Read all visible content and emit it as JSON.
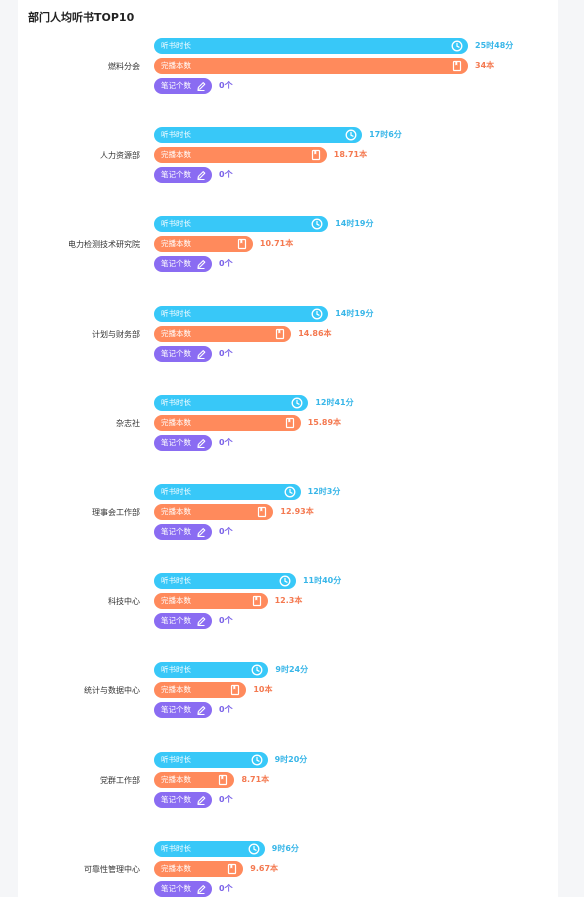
{
  "title": "部门人均听书TOP10",
  "colors": {
    "time": "#38c8f8",
    "books": "#ff8a5c",
    "notes": "#8a6cf2"
  },
  "bar_labels": {
    "time": "听书时长",
    "books": "完播本数",
    "notes": "笔记个数"
  },
  "icons": {
    "time": "clock-icon",
    "books": "book-icon",
    "notes": "pen-icon"
  },
  "chart_data": {
    "type": "bar",
    "title": "部门人均听书TOP10",
    "categories": [
      "燃料分会",
      "人力资源部",
      "电力检测技术研究院",
      "计划与财务部",
      "杂志社",
      "理事会工作部",
      "科技中心",
      "统计与数据中心",
      "党群工作部",
      "可靠性管理中心"
    ],
    "series": [
      {
        "name": "听书时长",
        "values_minutes": [
          1548,
          1026,
          859,
          859,
          761,
          723,
          700,
          564,
          560,
          546
        ]
      },
      {
        "name": "完播本数",
        "values": [
          34,
          18.71,
          10.71,
          14.86,
          15.89,
          12.93,
          12.3,
          10,
          8.71,
          9.67
        ]
      },
      {
        "name": "笔记个数",
        "values": [
          0,
          0,
          0,
          0,
          0,
          0,
          0,
          0,
          0,
          0
        ]
      }
    ]
  },
  "rows": [
    {
      "dept": "燃料分会",
      "time_text": "25时48分",
      "books_text": "34本",
      "notes_text": "0个"
    },
    {
      "dept": "人力资源部",
      "time_text": "17时6分",
      "books_text": "18.71本",
      "notes_text": "0个"
    },
    {
      "dept": "电力检测技术研究院",
      "time_text": "14时19分",
      "books_text": "10.71本",
      "notes_text": "0个"
    },
    {
      "dept": "计划与财务部",
      "time_text": "14时19分",
      "books_text": "14.86本",
      "notes_text": "0个"
    },
    {
      "dept": "杂志社",
      "time_text": "12时41分",
      "books_text": "15.89本",
      "notes_text": "0个"
    },
    {
      "dept": "理事会工作部",
      "time_text": "12时3分",
      "books_text": "12.93本",
      "notes_text": "0个"
    },
    {
      "dept": "科技中心",
      "time_text": "11时40分",
      "books_text": "12.3本",
      "notes_text": "0个"
    },
    {
      "dept": "统计与数据中心",
      "time_text": "9时24分",
      "books_text": "10本",
      "notes_text": "0个"
    },
    {
      "dept": "党群工作部",
      "time_text": "9时20分",
      "books_text": "8.71本",
      "notes_text": "0个"
    },
    {
      "dept": "可靠性管理中心",
      "time_text": "9时6分",
      "books_text": "9.67本",
      "notes_text": "0个"
    }
  ]
}
